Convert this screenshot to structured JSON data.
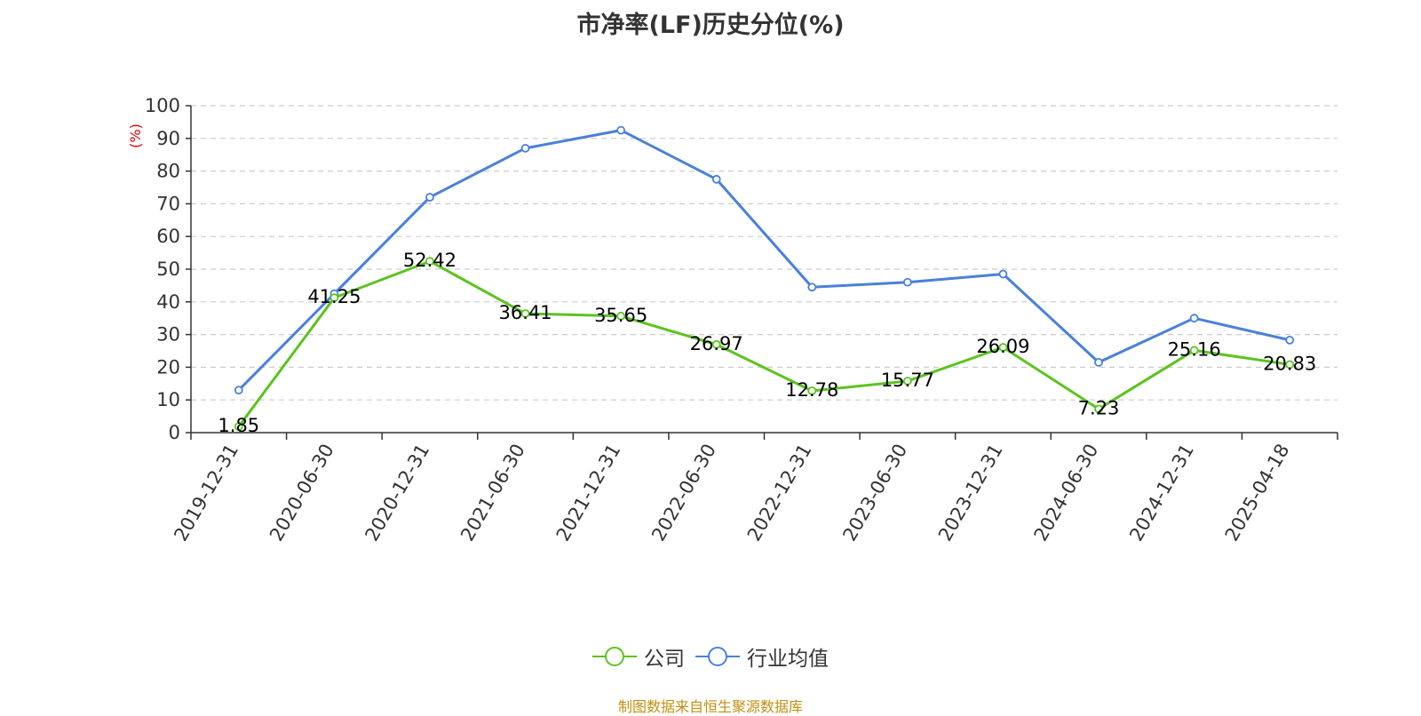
{
  "title": "市净率(LF)历史分位(%)",
  "source": "制图数据来自恒生聚源数据库",
  "colors": {
    "company": "#5cc31f",
    "industry": "#4a80dc",
    "unit": "#e00000",
    "grid": "#cccccc"
  },
  "chart_data": {
    "type": "line",
    "title": "市净率(LF)历史分位(%)",
    "ylabel": "(%)",
    "ylim": [
      0,
      100
    ],
    "yticks": [
      0,
      10,
      20,
      30,
      40,
      50,
      60,
      70,
      80,
      90,
      100
    ],
    "grid": true,
    "legend": "bottom-center",
    "categories": [
      "2019-12-31",
      "2020-06-30",
      "2020-12-31",
      "2021-06-30",
      "2021-12-31",
      "2022-06-30",
      "2022-12-31",
      "2023-06-30",
      "2023-12-31",
      "2024-06-30",
      "2024-12-31",
      "2025-04-18"
    ],
    "series": [
      {
        "name": "公司",
        "values": [
          1.85,
          41.25,
          52.42,
          36.41,
          35.65,
          26.97,
          12.78,
          15.77,
          26.09,
          7.23,
          25.16,
          20.83
        ],
        "labels": [
          "1.85",
          "41.25",
          "52.42",
          "36.41",
          "35.65",
          "26.97",
          "12.78",
          "15.77",
          "26.09",
          "7.23",
          "25.16",
          "20.83"
        ]
      },
      {
        "name": "行业均值",
        "values": [
          13.0,
          42.5,
          72.0,
          87.0,
          92.5,
          77.5,
          44.5,
          46.0,
          48.5,
          21.5,
          35.0,
          28.3
        ]
      }
    ]
  }
}
